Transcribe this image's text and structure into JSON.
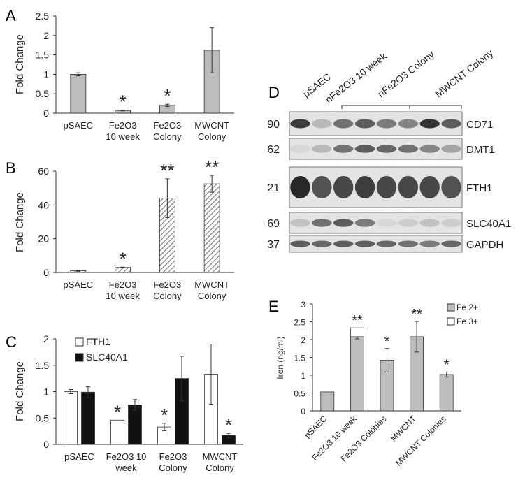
{
  "colors": {
    "gray_bar": "#bdbdbd",
    "black_bar": "#111111",
    "white_bar": "#ffffff",
    "axis": "#333333"
  },
  "panel_labels": {
    "a": "A",
    "b": "B",
    "c": "C",
    "d": "D",
    "e": "E"
  },
  "chart_data": [
    {
      "panel": "A",
      "type": "bar",
      "ylabel": "Fold Change",
      "ylim": [
        0,
        2.5
      ],
      "yticks": [
        "0",
        "0.5",
        "1",
        "1.5",
        "2",
        "2.5"
      ],
      "categories": [
        [
          "pSAEC"
        ],
        [
          "Fe2O3",
          "10 week"
        ],
        [
          "Fe2O3",
          "Colony"
        ],
        [
          "MWCNT",
          "Colony"
        ]
      ],
      "series": [
        {
          "values": [
            1.0,
            0.07,
            0.2,
            1.62
          ],
          "errors": [
            0.04,
            0.01,
            0.03,
            0.58
          ],
          "fill": "gray"
        }
      ],
      "annotations": [
        "",
        "*",
        "*",
        ""
      ]
    },
    {
      "panel": "B",
      "type": "bar",
      "ylabel": "Fold Change",
      "ylim": [
        0,
        60
      ],
      "yticks": [
        "0",
        "20",
        "40",
        "60"
      ],
      "categories": [
        [
          "pSAEC"
        ],
        [
          "Fe2O3",
          "10 week"
        ],
        [
          "Fe2O3",
          "Colony"
        ],
        [
          "MWCNT",
          "Colony"
        ]
      ],
      "series": [
        {
          "values": [
            1.0,
            3.0,
            44.0,
            52.5
          ],
          "errors": [
            0.3,
            0.2,
            11.5,
            5.0
          ],
          "fill": "hatched"
        }
      ],
      "annotations": [
        "",
        "*",
        "**",
        "**"
      ]
    },
    {
      "panel": "C",
      "type": "bar",
      "ylabel": "Fold Change",
      "ylim": [
        0,
        2
      ],
      "yticks": [
        "0",
        "0.5",
        "1",
        "1.5",
        "2"
      ],
      "categories": [
        [
          "pSAEC"
        ],
        [
          "Fe2O3 10",
          "week"
        ],
        [
          "Fe2O3",
          "Colony"
        ],
        [
          "MWCNT",
          "Colony"
        ]
      ],
      "legend_placement": "top-left",
      "series": [
        {
          "name": "FTH1",
          "values": [
            1.0,
            0.46,
            0.33,
            1.33
          ],
          "errors": [
            0.04,
            0.0,
            0.07,
            0.57
          ],
          "fill": "white"
        },
        {
          "name": "SLC40A1",
          "values": [
            0.99,
            0.75,
            1.25,
            0.17
          ],
          "errors": [
            0.1,
            0.1,
            0.42,
            0.04
          ],
          "fill": "black"
        }
      ],
      "annotations": [
        [
          "",
          ""
        ],
        [
          "*",
          ""
        ],
        [
          "*",
          ""
        ],
        [
          "",
          "*"
        ]
      ]
    },
    {
      "panel": "E",
      "type": "bar",
      "stacked": true,
      "ylabel": "Iron (ng/ml)",
      "ylim": [
        0,
        3
      ],
      "yticks": [
        "0",
        "0.5",
        "1",
        "1.5",
        "2",
        "2.5",
        "3"
      ],
      "categories": [
        "pSAEC",
        "Fe2O3 10 week",
        "Fe2O3 Colonies",
        "MWCNT",
        "MWCNT Colonies"
      ],
      "legend_placement": "top-right",
      "series": [
        {
          "name": "Fe 2+",
          "values": [
            0.53,
            2.08,
            1.42,
            2.08,
            1.02
          ],
          "errors": [
            0.0,
            0.06,
            0.33,
            0.43,
            0.07
          ],
          "fill": "gray"
        },
        {
          "name": "Fe 3+",
          "values": [
            0.0,
            0.25,
            0.0,
            0.0,
            0.0
          ],
          "fill": "white"
        }
      ],
      "annotations": [
        "",
        "**",
        "*",
        "**",
        "*"
      ]
    }
  ],
  "blot": {
    "lanes": [
      "pSAEC",
      "nFe2O3 10 week",
      "nFe2O3 Colony",
      "MWCNT Colony"
    ],
    "rows": [
      {
        "weight": "90",
        "protein": "CD71",
        "intensity": [
          0.85,
          0.25,
          0.6,
          0.7,
          0.55,
          0.5,
          0.9,
          0.7
        ]
      },
      {
        "weight": "62",
        "protein": "DMT1",
        "intensity": [
          0.1,
          0.25,
          0.6,
          0.7,
          0.65,
          0.6,
          0.5,
          0.35
        ]
      },
      {
        "weight": "21",
        "protein": "FTH1",
        "intensity": [
          0.95,
          0.75,
          0.8,
          0.85,
          0.8,
          0.8,
          0.8,
          0.75
        ]
      },
      {
        "weight": "69",
        "protein": "SLC40A1",
        "intensity": [
          0.2,
          0.6,
          0.7,
          0.55,
          0.1,
          0.15,
          0.2,
          0.15
        ]
      },
      {
        "weight": "37",
        "protein": "GAPDH",
        "intensity": [
          0.7,
          0.65,
          0.7,
          0.7,
          0.65,
          0.6,
          0.55,
          0.65
        ]
      }
    ]
  }
}
